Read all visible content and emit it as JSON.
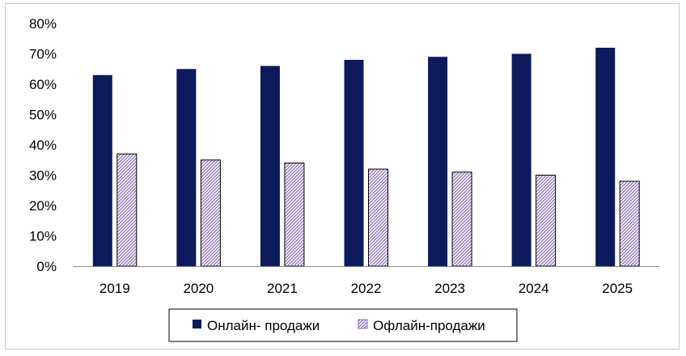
{
  "chart_data": {
    "type": "bar",
    "categories": [
      "2019",
      "2020",
      "2021",
      "2022",
      "2023",
      "2024",
      "2025"
    ],
    "series": [
      {
        "name": "Онлайн- продажи",
        "values": [
          63,
          65,
          66,
          68,
          69,
          70,
          72
        ],
        "color": "#0d1b5c",
        "pattern": "solid"
      },
      {
        "name": "Офлайн-продажи",
        "values": [
          37,
          35,
          34,
          32,
          31,
          30,
          28
        ],
        "color": "#8a6fb8",
        "pattern": "diagonal-hatch"
      }
    ],
    "ylim": [
      0,
      80
    ],
    "yticks": [
      0,
      10,
      20,
      30,
      40,
      50,
      60,
      70,
      80
    ],
    "ytick_labels": [
      "0%",
      "10%",
      "20%",
      "30%",
      "40%",
      "50%",
      "60%",
      "70%",
      "80%"
    ],
    "grid": false,
    "legend_position": "bottom",
    "title": "",
    "xlabel": "",
    "ylabel": ""
  }
}
